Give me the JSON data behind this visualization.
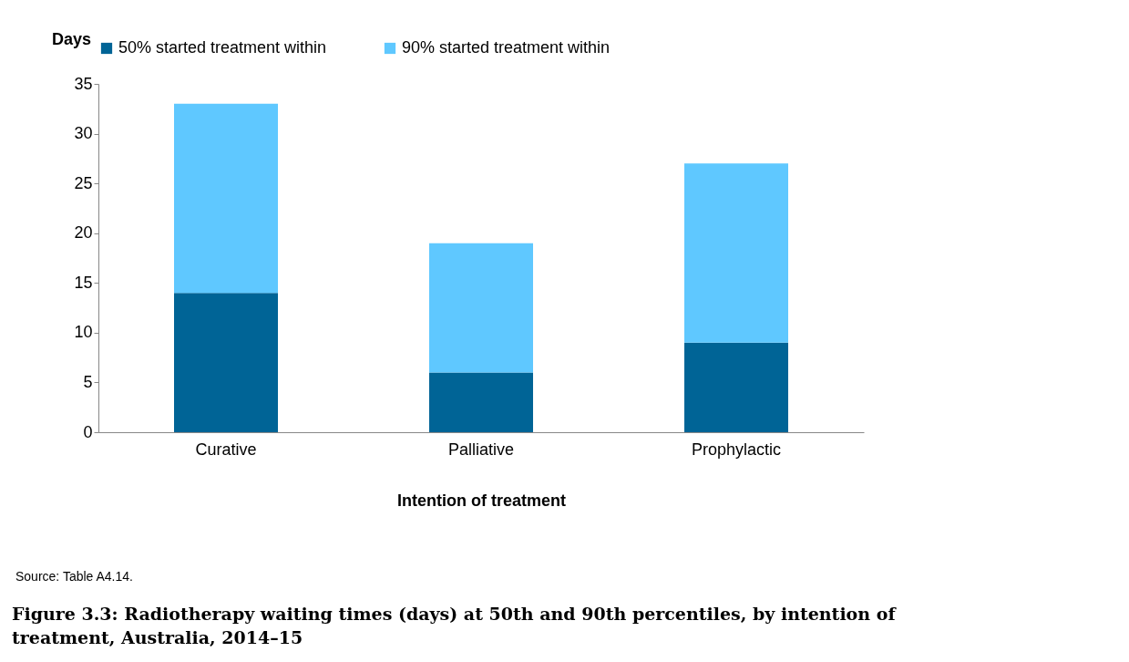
{
  "chart_data": {
    "type": "bar",
    "stacked": true,
    "title": "Figure 3.3: Radiotherapy waiting times (days) at 50th and 90th percentiles, by intention of treatment, Australia, 2014–15",
    "xlabel": "Intention of treatment",
    "ylabel": "Days",
    "categories": [
      "Curative",
      "Palliative",
      "Prophylactic"
    ],
    "series": [
      {
        "name": "50% started treatment within",
        "color": "#006496",
        "values": [
          14,
          6,
          9
        ]
      },
      {
        "name": "90% started treatment within",
        "color": "#5fc8ff",
        "values": [
          19,
          13,
          18
        ]
      }
    ],
    "ylim": [
      0,
      35
    ],
    "yticks": [
      0,
      5,
      10,
      15,
      20,
      25,
      30,
      35
    ],
    "grid": false,
    "legend": "top",
    "annotations": [
      "Source: Table A4.14."
    ]
  }
}
